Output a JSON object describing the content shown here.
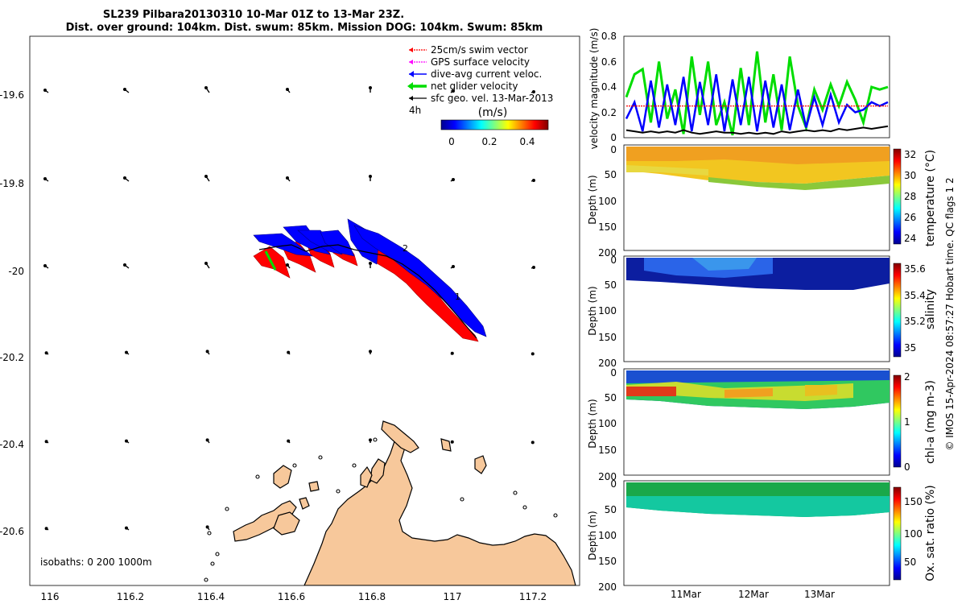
{
  "title": {
    "line1": "SL239 Pilbara20130310 10-Mar 01Z to 13-Mar 23Z.",
    "line2": "Dist. over ground: 104km. Dist. swum: 85km. Mission DOG: 104km. Swum: 85km"
  },
  "footer": "© IMOS 15-Apr-2024 08:57:27 Hobart time. QC flags 1  2",
  "colors": {
    "swim_vector": "#ff0000",
    "gps_velocity": "#ff00ff",
    "dive_avg": "#0000ff",
    "net_glider": "#00dd00",
    "sfc_geo": "#000000",
    "land": "#f7c89b"
  },
  "map": {
    "xticks": [
      "116",
      "116.2",
      "116.4",
      "116.6",
      "116.8",
      "117",
      "117.2"
    ],
    "yticks": [
      "-19.6",
      "-19.8",
      "-20",
      "-20.2",
      "-20.4",
      "-20.6"
    ],
    "isobaths": "isobaths: 0    200   1000m",
    "legend": [
      {
        "label": "25cm/s swim vector",
        "color": "#ff0000"
      },
      {
        "label": "GPS surface velocity",
        "color": "#ff00ff"
      },
      {
        "label": "dive-avg current veloc.",
        "color": "#0000ff"
      },
      {
        "label": "net glider velocity",
        "color": "#00dd00"
      },
      {
        "label": "sfc geo. vel. 13-Mar-2013",
        "color": "#000000"
      }
    ],
    "legend_extra": "4h",
    "colorbar_unit": "(m/s)",
    "colorbar_ticks": [
      "0",
      "0.2",
      "0.4"
    ],
    "track_labels": [
      "2",
      "1"
    ]
  },
  "chart_data": [
    {
      "type": "line",
      "ylabel": "velocity magnitude (m/s)",
      "ylim": [
        0,
        0.8
      ],
      "yticks": [
        "0",
        "0.2",
        "0.4",
        "0.6",
        "0.8"
      ],
      "series": [
        {
          "color": "#00dd00",
          "values": [
            0.32,
            0.5,
            0.54,
            0.12,
            0.6,
            0.15,
            0.38,
            0.03,
            0.64,
            0.18,
            0.6,
            0.1,
            0.28,
            0.02,
            0.55,
            0.1,
            0.68,
            0.12,
            0.5,
            0.06,
            0.64,
            0.25,
            0.08,
            0.38,
            0.22,
            0.42,
            0.25,
            0.44,
            0.3,
            0.12,
            0.4,
            0.38,
            0.4
          ]
        },
        {
          "color": "#0000ff",
          "values": [
            0.15,
            0.28,
            0.05,
            0.45,
            0.08,
            0.42,
            0.1,
            0.48,
            0.05,
            0.44,
            0.1,
            0.5,
            0.05,
            0.46,
            0.1,
            0.48,
            0.05,
            0.45,
            0.08,
            0.42,
            0.06,
            0.38,
            0.08,
            0.32,
            0.1,
            0.34,
            0.12,
            0.26,
            0.2,
            0.22,
            0.28,
            0.25,
            0.28
          ]
        },
        {
          "color": "#ff0000",
          "values": [
            0.25,
            0.25,
            0.25,
            0.25,
            0.25,
            0.25,
            0.25,
            0.25,
            0.25,
            0.25,
            0.25,
            0.25,
            0.25,
            0.25,
            0.25,
            0.25,
            0.25,
            0.25,
            0.25,
            0.25,
            0.25,
            0.25,
            0.25,
            0.25,
            0.25,
            0.25,
            0.25,
            0.25,
            0.25,
            0.25,
            0.25,
            0.25,
            0.25
          ]
        },
        {
          "color": "#000000",
          "values": [
            0.06,
            0.05,
            0.04,
            0.05,
            0.04,
            0.05,
            0.04,
            0.06,
            0.04,
            0.03,
            0.04,
            0.05,
            0.04,
            0.04,
            0.03,
            0.04,
            0.03,
            0.04,
            0.03,
            0.05,
            0.04,
            0.05,
            0.06,
            0.05,
            0.06,
            0.05,
            0.07,
            0.06,
            0.07,
            0.08,
            0.07,
            0.08,
            0.09
          ]
        }
      ]
    },
    {
      "type": "heatmap",
      "ylabel": "Depth (m)",
      "cbar_label": "temperature (°C)",
      "cbar_ticks": [
        "24",
        "26",
        "28",
        "30",
        "32"
      ],
      "yticks": [
        "0",
        "50",
        "100",
        "150",
        "200"
      ]
    },
    {
      "type": "heatmap",
      "ylabel": "Depth (m)",
      "cbar_label": "salinity",
      "cbar_ticks": [
        "35",
        "35.2",
        "35.4",
        "35.6"
      ],
      "yticks": [
        "0",
        "50",
        "100",
        "150",
        "200"
      ]
    },
    {
      "type": "heatmap",
      "ylabel": "Depth (m)",
      "cbar_label": "chl-a (mg m-3)",
      "cbar_ticks": [
        "0",
        "1",
        "2"
      ],
      "yticks": [
        "0",
        "50",
        "100",
        "150",
        "200"
      ]
    },
    {
      "type": "heatmap",
      "ylabel": "Depth (m)",
      "cbar_label": "Ox. sat. ratio (%)",
      "cbar_ticks": [
        "50",
        "100",
        "150"
      ],
      "yticks": [
        "0",
        "50",
        "100",
        "150",
        "200"
      ],
      "xticks": [
        "11Mar",
        "12Mar",
        "13Mar"
      ]
    }
  ]
}
